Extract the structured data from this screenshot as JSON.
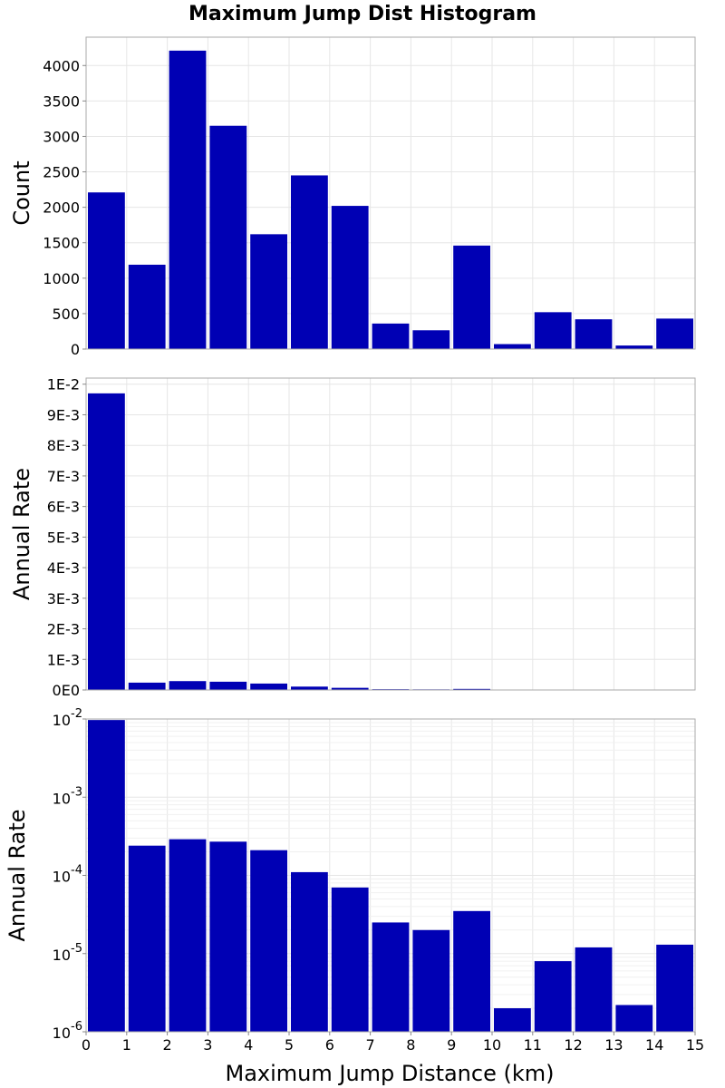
{
  "figure": {
    "title": "Maximum Jump Dist Histogram",
    "xlabel": "Maximum Jump Distance (km)",
    "bar_color": "#0000B4",
    "background": "#ffffff"
  },
  "chart_data": [
    {
      "type": "bar",
      "ylabel": "Count",
      "xlim": [
        0,
        15
      ],
      "ylim": [
        0,
        4400
      ],
      "grid": true,
      "x_ticks": [
        0,
        1,
        2,
        3,
        4,
        5,
        6,
        7,
        8,
        9,
        10,
        11,
        12,
        13,
        14,
        15
      ],
      "y_ticks": [
        {
          "value": 0,
          "label": "0"
        },
        {
          "value": 500,
          "label": "500"
        },
        {
          "value": 1000,
          "label": "1000"
        },
        {
          "value": 1500,
          "label": "1500"
        },
        {
          "value": 2000,
          "label": "2000"
        },
        {
          "value": 2500,
          "label": "2500"
        },
        {
          "value": 3000,
          "label": "3000"
        },
        {
          "value": 3500,
          "label": "3500"
        },
        {
          "value": 4000,
          "label": "4000"
        }
      ],
      "bins": [
        0.5,
        1.5,
        2.5,
        3.5,
        4.5,
        5.5,
        6.5,
        7.5,
        8.5,
        9.5,
        10.5,
        11.5,
        12.5,
        13.5,
        14.5
      ],
      "values": [
        2210,
        1190,
        4210,
        3150,
        1620,
        2450,
        2020,
        360,
        265,
        1460,
        70,
        520,
        420,
        50,
        430
      ]
    },
    {
      "type": "bar",
      "ylabel": "Annual Rate",
      "xlim": [
        0,
        15
      ],
      "ylim": [
        0,
        0.0102
      ],
      "grid": true,
      "y_ticks": [
        {
          "value": 0,
          "label": "0E0"
        },
        {
          "value": 0.001,
          "label": "1E-3"
        },
        {
          "value": 0.002,
          "label": "2E-3"
        },
        {
          "value": 0.003,
          "label": "3E-3"
        },
        {
          "value": 0.004,
          "label": "4E-3"
        },
        {
          "value": 0.005,
          "label": "5E-3"
        },
        {
          "value": 0.006,
          "label": "6E-3"
        },
        {
          "value": 0.007,
          "label": "7E-3"
        },
        {
          "value": 0.008,
          "label": "8E-3"
        },
        {
          "value": 0.009,
          "label": "9E-3"
        },
        {
          "value": 0.01,
          "label": "1E-2"
        }
      ],
      "bins": [
        0.5,
        1.5,
        2.5,
        3.5,
        4.5,
        5.5,
        6.5,
        7.5,
        8.5,
        9.5,
        10.5,
        11.5,
        12.5,
        13.5,
        14.5
      ],
      "values": [
        0.0097,
        0.00024,
        0.00029,
        0.00027,
        0.00021,
        0.00011,
        7e-05,
        2.5e-05,
        2e-05,
        3.5e-05,
        2e-06,
        8e-06,
        1.2e-05,
        2.2e-06,
        1.3e-05
      ]
    },
    {
      "type": "bar",
      "ylabel": "Annual Rate",
      "yscale": "log",
      "xlim": [
        0,
        15
      ],
      "ylim": [
        1e-06,
        0.01
      ],
      "grid": true,
      "x_ticks": [
        0,
        1,
        2,
        3,
        4,
        5,
        6,
        7,
        8,
        9,
        10,
        11,
        12,
        13,
        14,
        15
      ],
      "y_ticks": [
        {
          "value": 1e-06,
          "base": "10",
          "exp": "-6"
        },
        {
          "value": 1e-05,
          "base": "10",
          "exp": "-5"
        },
        {
          "value": 0.0001,
          "base": "10",
          "exp": "-4"
        },
        {
          "value": 0.001,
          "base": "10",
          "exp": "-3"
        },
        {
          "value": 0.01,
          "base": "10",
          "exp": "-2"
        }
      ],
      "bins": [
        0.5,
        1.5,
        2.5,
        3.5,
        4.5,
        5.5,
        6.5,
        7.5,
        8.5,
        9.5,
        10.5,
        11.5,
        12.5,
        13.5,
        14.5
      ],
      "values": [
        0.0097,
        0.00024,
        0.00029,
        0.00027,
        0.00021,
        0.00011,
        7e-05,
        2.5e-05,
        2e-05,
        3.5e-05,
        2e-06,
        8e-06,
        1.2e-05,
        2.2e-06,
        1.3e-05
      ]
    }
  ]
}
